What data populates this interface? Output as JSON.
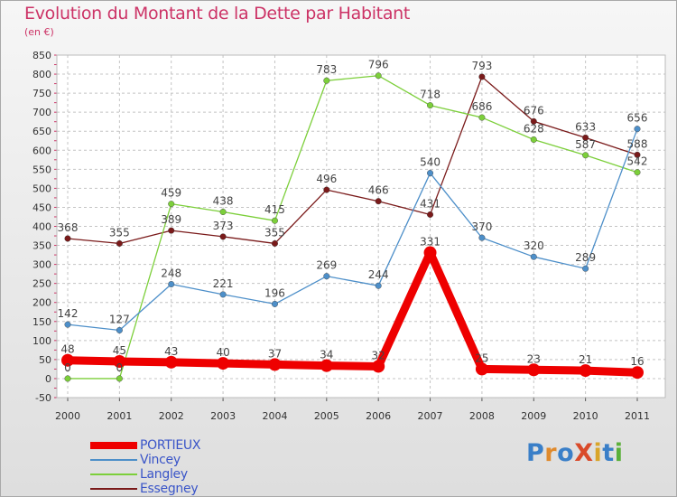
{
  "header": {
    "title": "Evolution du Montant de la Dette par Habitant",
    "subtitle": "(en €)"
  },
  "logo": {
    "text": "ProXiti",
    "colors": [
      "#3a7fc8",
      "#e08a2c",
      "#3a7fc8",
      "#d94a2a",
      "#d9a52a",
      "#3a7fc8",
      "#5bb03a"
    ]
  },
  "chart_data": {
    "type": "line",
    "title": "Evolution du Montant de la Dette par Habitant",
    "ylabel": "(en €)",
    "xlabel": "",
    "x": [
      "2000",
      "2001",
      "2002",
      "2003",
      "2004",
      "2005",
      "2006",
      "2007",
      "2008",
      "2009",
      "2010",
      "2011"
    ],
    "ylim": [
      -50,
      850
    ],
    "yticks": [
      -50,
      0,
      50,
      100,
      150,
      200,
      250,
      300,
      350,
      400,
      450,
      500,
      550,
      600,
      650,
      700,
      750,
      800,
      850
    ],
    "grid": "horizontal-dashed",
    "legend_position": "bottom-left",
    "series": [
      {
        "name": "Essegney",
        "color": "#7a1a1a",
        "values": [
          368,
          355,
          389,
          373,
          355,
          496,
          466,
          431,
          793,
          676,
          633,
          588
        ]
      },
      {
        "name": "Langley",
        "color": "#7ccf3a",
        "values": [
          0,
          0,
          459,
          438,
          415,
          783,
          796,
          718,
          686,
          628,
          587,
          542
        ]
      },
      {
        "name": "Vincey",
        "color": "#4d8fc9",
        "values": [
          142,
          127,
          248,
          221,
          196,
          269,
          244,
          540,
          370,
          320,
          289,
          656
        ]
      },
      {
        "name": "PORTIEUX",
        "color": "#ee0000",
        "values": [
          48,
          45,
          43,
          40,
          37,
          34,
          32,
          331,
          25,
          23,
          21,
          16
        ]
      }
    ],
    "legend_order": [
      "PORTIEUX",
      "Vincey",
      "Langley",
      "Essegney"
    ]
  }
}
